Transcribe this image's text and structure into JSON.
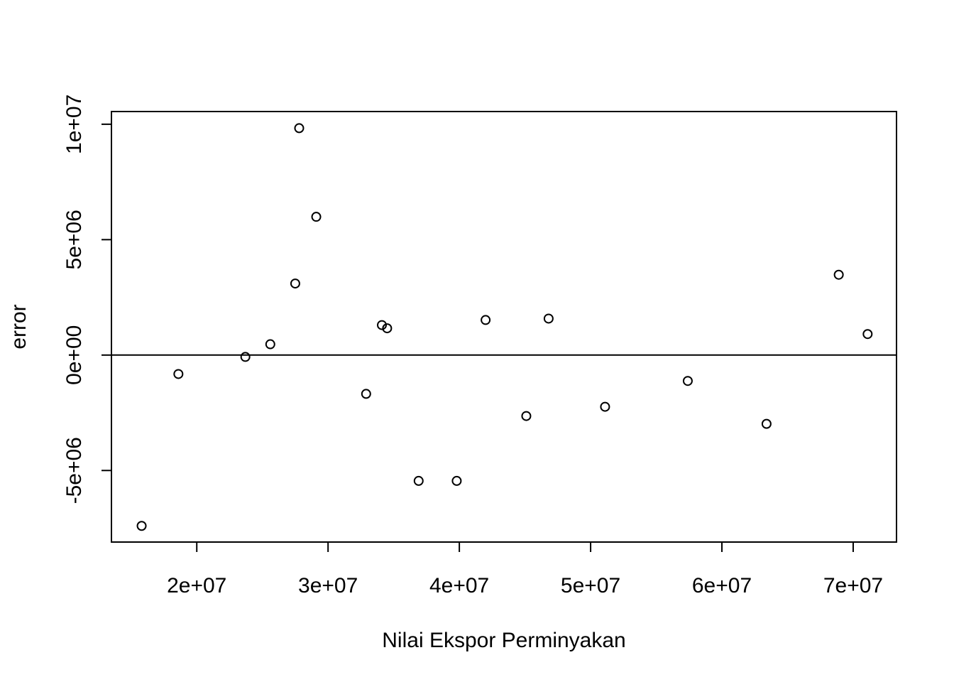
{
  "chart_data": {
    "type": "scatter",
    "title": "",
    "xlabel": "Nilai Ekspor Perminyakan",
    "ylabel": "error",
    "xlim": [
      13500000,
      73300000
    ],
    "ylim": [
      -8100000,
      10550000
    ],
    "x_ticks": [
      {
        "value": 20000000,
        "label": "2e+07"
      },
      {
        "value": 30000000,
        "label": "3e+07"
      },
      {
        "value": 40000000,
        "label": "4e+07"
      },
      {
        "value": 50000000,
        "label": "5e+07"
      },
      {
        "value": 60000000,
        "label": "6e+07"
      },
      {
        "value": 70000000,
        "label": "7e+07"
      }
    ],
    "y_ticks": [
      {
        "value": -5000000,
        "label": "-5e+06"
      },
      {
        "value": 0,
        "label": "0e+00"
      },
      {
        "value": 5000000,
        "label": "5e+06"
      },
      {
        "value": 10000000,
        "label": "1e+07"
      }
    ],
    "reference_line_y": 0,
    "points": [
      {
        "x": 15800000,
        "y": -7400000
      },
      {
        "x": 18600000,
        "y": -820000
      },
      {
        "x": 23700000,
        "y": -80000
      },
      {
        "x": 25600000,
        "y": 470000
      },
      {
        "x": 27500000,
        "y": 3100000
      },
      {
        "x": 27800000,
        "y": 9830000
      },
      {
        "x": 29100000,
        "y": 5990000
      },
      {
        "x": 32900000,
        "y": -1680000
      },
      {
        "x": 34100000,
        "y": 1300000
      },
      {
        "x": 34500000,
        "y": 1160000
      },
      {
        "x": 36900000,
        "y": -5450000
      },
      {
        "x": 39800000,
        "y": -5450000
      },
      {
        "x": 42000000,
        "y": 1520000
      },
      {
        "x": 45100000,
        "y": -2640000
      },
      {
        "x": 46800000,
        "y": 1580000
      },
      {
        "x": 51100000,
        "y": -2240000
      },
      {
        "x": 57400000,
        "y": -1120000
      },
      {
        "x": 63400000,
        "y": -2980000
      },
      {
        "x": 68900000,
        "y": 3480000
      },
      {
        "x": 71100000,
        "y": 910000
      }
    ],
    "grid": false,
    "legend": "none"
  }
}
